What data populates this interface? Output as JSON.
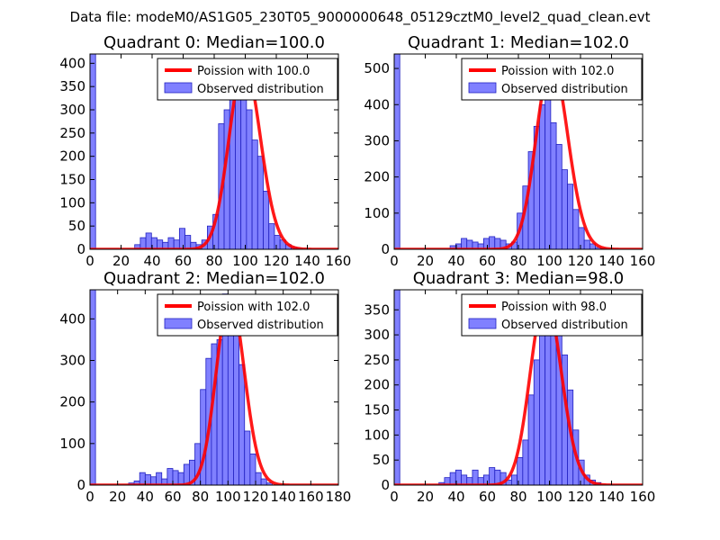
{
  "figure": {
    "suptitle": "Data file: modeM0/AS1G05_230T05_9000000648_05129cztM0_level2_quad_clean.evt"
  },
  "colors": {
    "bar_fill": "#8080ff",
    "bar_edge": "#2020c0",
    "poisson_line": "#ff0000"
  },
  "chart_data": [
    {
      "type": "bar",
      "title": "Quadrant 0: Median=100.0",
      "median": 100.0,
      "xlim": [
        0,
        160
      ],
      "ylim": [
        0,
        420
      ],
      "xticks": [
        0,
        20,
        40,
        60,
        80,
        100,
        120,
        140,
        160
      ],
      "yticks": [
        0,
        50,
        100,
        150,
        200,
        250,
        300,
        350,
        400
      ],
      "bin_width": 3.6,
      "bins_start": 0,
      "counts": [
        420,
        0,
        0,
        0,
        0,
        0,
        0,
        0,
        10,
        25,
        35,
        25,
        20,
        15,
        25,
        20,
        45,
        30,
        15,
        10,
        20,
        50,
        75,
        270,
        300,
        355,
        400,
        365,
        300,
        235,
        200,
        125,
        55,
        30,
        20,
        10,
        5,
        3,
        0,
        0,
        0,
        0
      ],
      "legend": [
        {
          "label": "Poission with 100.0",
          "kind": "line"
        },
        {
          "label": "Observed distribution",
          "kind": "patch"
        }
      ],
      "poisson": {
        "mean": 100.0,
        "peak": 400
      }
    },
    {
      "type": "bar",
      "title": "Quadrant 1: Median=102.0",
      "median": 102.0,
      "xlim": [
        0,
        160
      ],
      "ylim": [
        0,
        540
      ],
      "xticks": [
        0,
        20,
        40,
        60,
        80,
        100,
        120,
        140,
        160
      ],
      "yticks": [
        0,
        100,
        200,
        300,
        400,
        500
      ],
      "bin_width": 3.6,
      "bins_start": 0,
      "counts": [
        540,
        0,
        0,
        0,
        0,
        0,
        0,
        0,
        0,
        0,
        10,
        15,
        30,
        25,
        20,
        15,
        30,
        35,
        30,
        25,
        15,
        20,
        100,
        175,
        270,
        340,
        400,
        420,
        350,
        290,
        220,
        180,
        110,
        60,
        25,
        15,
        5,
        3,
        0,
        0,
        0,
        0
      ],
      "legend": [
        {
          "label": "Poission with 102.0",
          "kind": "line"
        },
        {
          "label": "Observed distribution",
          "kind": "patch"
        }
      ],
      "poisson": {
        "mean": 102.0,
        "peak": 520
      }
    },
    {
      "type": "bar",
      "title": "Quadrant 2: Median=102.0",
      "median": 102.0,
      "xlim": [
        0,
        180
      ],
      "ylim": [
        0,
        470
      ],
      "xticks": [
        0,
        20,
        40,
        60,
        80,
        100,
        120,
        140,
        160,
        180
      ],
      "yticks": [
        0,
        100,
        200,
        300,
        400
      ],
      "bin_width": 4.0,
      "bins_start": 0,
      "counts": [
        470,
        0,
        0,
        0,
        0,
        0,
        0,
        5,
        10,
        30,
        25,
        20,
        30,
        15,
        40,
        35,
        30,
        50,
        60,
        100,
        230,
        305,
        340,
        350,
        460,
        420,
        380,
        290,
        130,
        75,
        30,
        15,
        5,
        0,
        0,
        0,
        0,
        0,
        0,
        0,
        0,
        0,
        0,
        0,
        0
      ],
      "legend": [
        {
          "label": "Poission with 102.0",
          "kind": "line"
        },
        {
          "label": "Observed distribution",
          "kind": "patch"
        }
      ],
      "poisson": {
        "mean": 102.0,
        "peak": 455
      }
    },
    {
      "type": "bar",
      "title": "Quadrant 3: Median=98.0",
      "median": 98.0,
      "xlim": [
        0,
        160
      ],
      "ylim": [
        0,
        390
      ],
      "xticks": [
        0,
        20,
        40,
        60,
        80,
        100,
        120,
        140,
        160
      ],
      "yticks": [
        0,
        50,
        100,
        150,
        200,
        250,
        300,
        350
      ],
      "bin_width": 3.6,
      "bins_start": 0,
      "counts": [
        390,
        0,
        0,
        0,
        0,
        0,
        0,
        0,
        5,
        15,
        25,
        30,
        20,
        15,
        30,
        15,
        20,
        35,
        30,
        25,
        10,
        20,
        55,
        90,
        180,
        250,
        300,
        330,
        380,
        340,
        260,
        190,
        110,
        50,
        20,
        10,
        5,
        0,
        0,
        0,
        0,
        0
      ],
      "legend": [
        {
          "label": "Poission with 98.0",
          "kind": "line"
        },
        {
          "label": "Observed distribution",
          "kind": "patch"
        }
      ],
      "poisson": {
        "mean": 98.0,
        "peak": 375
      }
    }
  ]
}
